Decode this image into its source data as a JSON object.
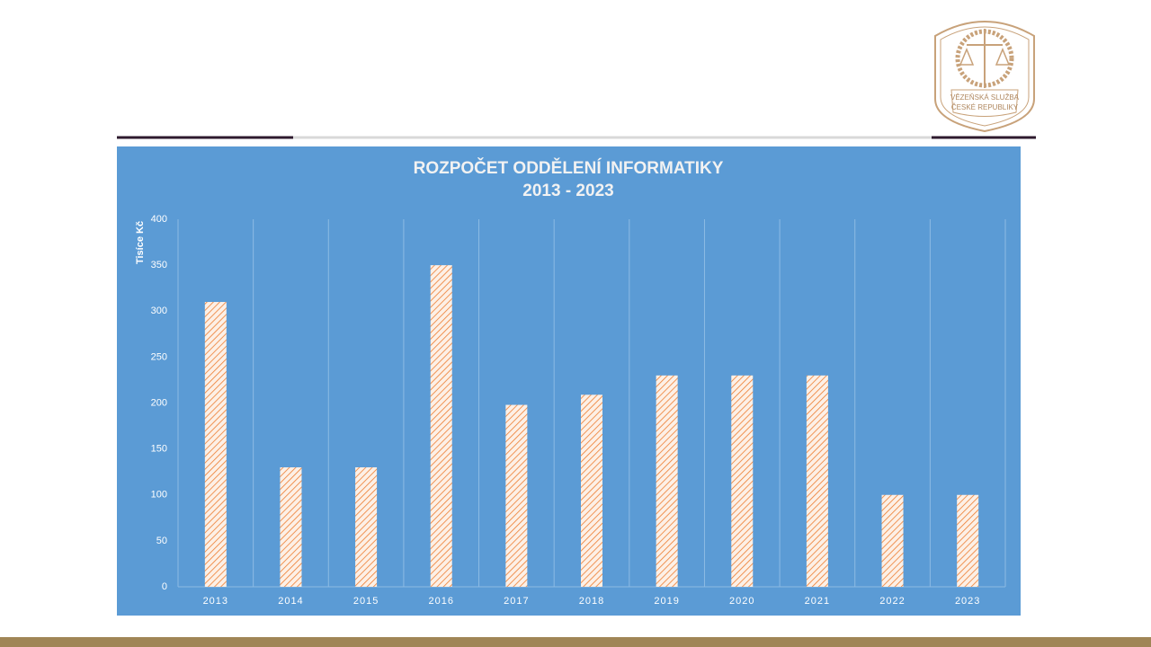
{
  "logo": {
    "line1": "VĚZEŇSKÁ SLUŽBA",
    "line2": "ČESKÉ REPUBLIKY"
  },
  "chart_data": {
    "type": "bar",
    "title": "ROZPOČET ODDĚLENÍ INFORMATIKY",
    "subtitle": "2013 - 2023",
    "y_label": "Tisíce Kč",
    "categories": [
      "2013",
      "2014",
      "2015",
      "2016",
      "2017",
      "2018",
      "2019",
      "2020",
      "2021",
      "2022",
      "2023"
    ],
    "values": [
      310,
      130,
      130,
      350,
      198,
      209,
      230,
      230,
      230,
      100,
      100
    ],
    "color": "#ed7d31",
    "ylim": [
      0,
      400
    ],
    "yticks": [
      0,
      50,
      100,
      150,
      200,
      250,
      300,
      350,
      400
    ],
    "grid": true
  }
}
